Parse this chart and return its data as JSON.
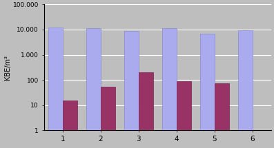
{
  "categories": [
    1,
    2,
    3,
    4,
    5,
    6
  ],
  "blue_values": [
    12000,
    11000,
    9000,
    11000,
    7000,
    9500
  ],
  "purple_values": [
    15,
    55,
    200,
    90,
    75,
    null
  ],
  "blue_color": "#AAAAEE",
  "purple_color": "#993366",
  "ylabel": "KBE/m³",
  "ylim_min": 1,
  "ylim_max": 100000,
  "yticks": [
    1,
    10,
    100,
    1000,
    10000,
    100000
  ],
  "ytick_labels": [
    "1",
    "10",
    "100",
    "1.000",
    "10.000",
    "100.000"
  ],
  "background_color": "#BEBEBE",
  "bar_width": 0.38,
  "grid_color": "#FFFFFF"
}
